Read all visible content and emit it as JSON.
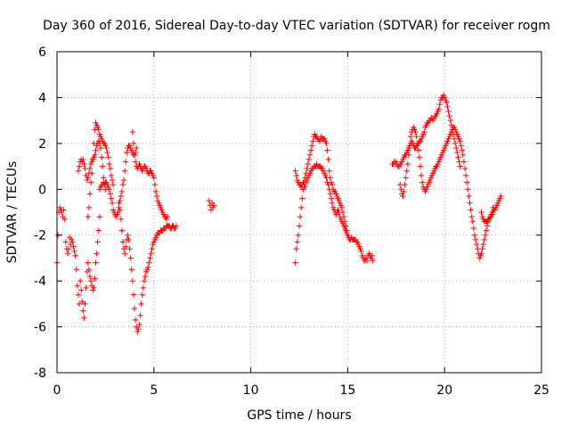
{
  "chart_data": {
    "type": "scatter",
    "title": "Day 360 of 2016, Sidereal Day-to-day VTEC variation (SDTVAR) for receiver rogm",
    "xlabel": "GPS time / hours",
    "ylabel": "SDTVAR / TECUs",
    "xlim": [
      0,
      25
    ],
    "ylim": [
      -8,
      6
    ],
    "xticks": [
      0,
      5,
      10,
      15,
      20,
      25
    ],
    "yticks": [
      -8,
      -6,
      -4,
      -2,
      0,
      2,
      4,
      6
    ],
    "grid": true,
    "marker": "+",
    "color": "#ff0000",
    "series": [
      {
        "name": "segment-1",
        "x": [
          0.0,
          0.05,
          0.1,
          0.15,
          0.2,
          0.25,
          0.3,
          0.35,
          0.4,
          0.45,
          0.5,
          0.55,
          0.6,
          0.65,
          0.7,
          0.75,
          0.8,
          0.85,
          0.9,
          0.95,
          1.0,
          1.05,
          1.1,
          1.15
        ],
        "y": [
          -3.2,
          -2.0,
          -1.0,
          -0.8,
          -0.9,
          -1.0,
          -1.2,
          -0.9,
          -1.3,
          -2.3,
          -2.6,
          -2.8,
          -2.6,
          -2.1,
          -2.4,
          -2.2,
          -2.3,
          -2.5,
          -2.7,
          -2.9,
          -3.5,
          -4.2,
          -4.6,
          -5.0
        ]
      },
      {
        "name": "segment-2",
        "x": [
          1.1,
          1.15,
          1.2,
          1.25,
          1.3,
          1.35,
          1.4,
          1.45,
          1.5,
          1.55,
          1.6,
          1.65,
          1.7,
          1.75,
          1.8,
          1.85,
          1.9,
          1.95,
          2.0,
          2.05,
          2.1,
          2.15,
          2.2,
          2.25,
          2.3,
          2.35,
          2.4,
          2.45,
          2.5
        ],
        "y": [
          0.8,
          1.0,
          1.2,
          1.3,
          1.2,
          1.3,
          1.1,
          0.9,
          0.6,
          0.4,
          0.5,
          0.7,
          0.9,
          1.1,
          1.2,
          1.3,
          1.4,
          1.5,
          1.7,
          1.9,
          2.0,
          2.1,
          2.0,
          1.8,
          1.4,
          1.0,
          0.5,
          0.2,
          0.0
        ]
      },
      {
        "name": "segment-3",
        "x": [
          1.2,
          1.25,
          1.3,
          1.35,
          1.4,
          1.45,
          1.5,
          1.55,
          1.6,
          1.65,
          1.7,
          1.75,
          1.8,
          1.85,
          1.9,
          1.95,
          2.0,
          2.05,
          2.1,
          2.15,
          2.2
        ],
        "y": [
          -4.0,
          -4.4,
          -4.9,
          -5.3,
          -5.6,
          -5.0,
          -4.3,
          -3.6,
          -3.2,
          -3.5,
          -3.8,
          -4.0,
          -4.2,
          -4.4,
          -4.3,
          -3.9,
          -3.2,
          -2.8,
          -2.3,
          -1.8,
          -1.2
        ]
      },
      {
        "name": "segment-4",
        "x": [
          1.6,
          1.65,
          1.7,
          1.75,
          1.8,
          1.85,
          1.9,
          1.95,
          2.0,
          2.05,
          2.1,
          2.15,
          2.2,
          2.25,
          2.3,
          2.35,
          2.4,
          2.45,
          2.5,
          2.55,
          2.6,
          2.65,
          2.7,
          2.75,
          2.8,
          2.85,
          2.9
        ],
        "y": [
          -1.2,
          -0.8,
          -0.2,
          0.3,
          0.7,
          1.3,
          2.0,
          2.6,
          2.9,
          2.8,
          2.7,
          2.6,
          2.4,
          2.3,
          2.2,
          2.1,
          2.0,
          2.0,
          1.9,
          1.8,
          1.6,
          1.4,
          1.1,
          0.9,
          0.6,
          0.4,
          0.2
        ]
      },
      {
        "name": "segment-5",
        "x": [
          2.2,
          2.25,
          2.3,
          2.35,
          2.4,
          2.45,
          2.5,
          2.55,
          2.6,
          2.65,
          2.7,
          2.75,
          2.8,
          2.85,
          2.9,
          2.95,
          3.0,
          3.05,
          3.1,
          3.15,
          3.2,
          3.25,
          3.3,
          3.35,
          3.4,
          3.45,
          3.5,
          3.55,
          3.6,
          3.65,
          3.7,
          3.75,
          3.8,
          3.85,
          3.9,
          3.95,
          4.0,
          4.05,
          4.1
        ],
        "y": [
          0.0,
          0.1,
          0.2,
          0.2,
          0.3,
          0.2,
          0.3,
          0.3,
          0.2,
          0.1,
          0.0,
          -0.2,
          -0.4,
          -0.6,
          -0.9,
          -1.0,
          -1.1,
          -1.2,
          -1.1,
          -1.0,
          -0.8,
          -0.5,
          -0.3,
          -0.1,
          0.2,
          0.4,
          0.8,
          1.2,
          1.6,
          1.8,
          1.9,
          1.9,
          1.8,
          1.7,
          1.6,
          1.5,
          1.5,
          1.6,
          1.8
        ]
      },
      {
        "name": "segment-6",
        "x": [
          3.2,
          3.25,
          3.3,
          3.35,
          3.4,
          3.45,
          3.5,
          3.55,
          3.6,
          3.65,
          3.7,
          3.75,
          3.8,
          3.85,
          3.9,
          3.95,
          4.0,
          4.05,
          4.1,
          4.15,
          4.2,
          4.25,
          4.3,
          4.35,
          4.4,
          4.45,
          4.5,
          4.55,
          4.6,
          4.65,
          4.7,
          4.75,
          4.8,
          4.85,
          4.9,
          4.95,
          5.0,
          5.05,
          5.1,
          5.15,
          5.2,
          5.25,
          5.3,
          5.35,
          5.4,
          5.45,
          5.5,
          5.55,
          5.6,
          5.65,
          5.7,
          5.75,
          5.8,
          5.85,
          5.9,
          5.95,
          6.0,
          6.05,
          6.1,
          6.15
        ],
        "y": [
          -0.6,
          -0.9,
          -1.3,
          -1.8,
          -2.3,
          -2.6,
          -2.8,
          -2.5,
          -2.2,
          -2.0,
          -2.2,
          -2.6,
          -3.0,
          -3.5,
          -4.0,
          -4.6,
          -5.2,
          -5.7,
          -6.0,
          -6.2,
          -6.1,
          -5.9,
          -5.5,
          -5.0,
          -4.6,
          -4.3,
          -4.0,
          -3.8,
          -3.6,
          -3.5,
          -3.4,
          -3.2,
          -3.0,
          -2.8,
          -2.6,
          -2.4,
          -2.3,
          -2.2,
          -2.1,
          -2.0,
          -1.9,
          -1.9,
          -1.9,
          -1.8,
          -1.8,
          -1.8,
          -1.7,
          -1.7,
          -1.7,
          -1.6,
          -1.6,
          -1.6,
          -1.6,
          -1.7,
          -1.7,
          -1.6,
          -1.6,
          -1.7,
          -1.7,
          -1.6
        ]
      },
      {
        "name": "segment-7",
        "x": [
          3.9,
          3.95,
          4.0,
          4.05,
          4.1,
          4.15,
          4.2,
          4.25,
          4.3,
          4.35,
          4.4,
          4.45,
          4.5,
          4.55,
          4.6,
          4.65,
          4.7,
          4.75,
          4.8,
          4.85,
          4.9,
          4.95,
          5.0,
          5.05,
          5.1,
          5.15,
          5.2,
          5.25,
          5.3,
          5.35,
          5.4,
          5.45,
          5.5,
          5.55,
          5.6,
          5.65,
          5.7
        ],
        "y": [
          2.5,
          2.0,
          1.5,
          1.2,
          1.0,
          0.9,
          1.0,
          1.1,
          1.0,
          0.9,
          0.8,
          0.9,
          1.0,
          1.0,
          0.9,
          0.8,
          0.7,
          0.7,
          0.8,
          0.8,
          0.7,
          0.6,
          0.5,
          0.2,
          -0.1,
          -0.3,
          -0.5,
          -0.6,
          -0.7,
          -0.8,
          -0.9,
          -1.0,
          -1.1,
          -1.2,
          -1.2,
          -1.3,
          -1.2
        ]
      },
      {
        "name": "segment-8",
        "x": [
          7.85,
          7.9,
          7.95,
          8.0,
          8.05,
          8.1
        ],
        "y": [
          -0.5,
          -0.7,
          -0.9,
          -0.6,
          -0.8,
          -0.7
        ]
      },
      {
        "name": "segment-9",
        "x": [
          12.3,
          12.35,
          12.4,
          12.45,
          12.5,
          12.55,
          12.6,
          12.65,
          12.7,
          12.75,
          12.8,
          12.85,
          12.9,
          12.95,
          13.0,
          13.05,
          13.1,
          13.15,
          13.2,
          13.25,
          13.3,
          13.35,
          13.4,
          13.45,
          13.5,
          13.55,
          13.6,
          13.65,
          13.7,
          13.75,
          13.8,
          13.85,
          13.9,
          13.95,
          14.0,
          14.05,
          14.1,
          14.15,
          14.2,
          14.25,
          14.3,
          14.35,
          14.4,
          14.45,
          14.5,
          14.55,
          14.6,
          14.65,
          14.7,
          14.75,
          14.8,
          14.85,
          14.9,
          14.95,
          15.0,
          15.05,
          15.1,
          15.15,
          15.2,
          15.25,
          15.3,
          15.35,
          15.4,
          15.45,
          15.5,
          15.55,
          15.6,
          15.65,
          15.7,
          15.75,
          15.8,
          15.85,
          15.9,
          15.95,
          16.0,
          16.05,
          16.1,
          16.15,
          16.2,
          16.25,
          16.3
        ],
        "y": [
          -3.2,
          -2.6,
          -2.3,
          -2.0,
          -1.6,
          -1.2,
          -0.8,
          -0.4,
          0.0,
          0.3,
          0.5,
          0.7,
          0.9,
          1.1,
          1.3,
          1.5,
          1.7,
          1.9,
          2.1,
          2.3,
          2.4,
          2.3,
          2.3,
          2.2,
          2.2,
          2.1,
          2.2,
          2.3,
          2.2,
          2.2,
          2.2,
          2.1,
          2.0,
          1.7,
          1.3,
          0.8,
          0.5,
          0.3,
          0.2,
          0.0,
          -0.1,
          -0.1,
          -0.2,
          -0.3,
          -0.4,
          -0.5,
          -0.6,
          -0.7,
          -0.8,
          -1.0,
          -1.2,
          -1.4,
          -1.6,
          -1.8,
          -2.0,
          -2.1,
          -2.2,
          -2.2,
          -2.1,
          -2.2,
          -2.2,
          -2.2,
          -2.2,
          -2.3,
          -2.3,
          -2.4,
          -2.5,
          -2.6,
          -2.7,
          -2.9,
          -3.0,
          -3.1,
          -3.1,
          -3.0,
          -3.1,
          -2.9,
          -2.8,
          -2.9,
          -3.0,
          -2.9,
          -3.1
        ]
      },
      {
        "name": "segment-10",
        "x": [
          12.3,
          12.35,
          12.4,
          12.45,
          12.5,
          12.55,
          12.6,
          12.65,
          12.7,
          12.75,
          12.8,
          12.85,
          12.9,
          12.95,
          13.0,
          13.05,
          13.1,
          13.15,
          13.2,
          13.25,
          13.3,
          13.35,
          13.4,
          13.45,
          13.5,
          13.55,
          13.6,
          13.65,
          13.7,
          13.75,
          13.8,
          13.85,
          13.9,
          13.95,
          14.0,
          14.05,
          14.1,
          14.15,
          14.2,
          14.25,
          14.3,
          14.35,
          14.4,
          14.45,
          14.5,
          14.55,
          14.6,
          14.65,
          14.7,
          14.75,
          14.8,
          14.85,
          14.9,
          14.95,
          15.0
        ],
        "y": [
          0.8,
          0.6,
          0.4,
          0.3,
          0.2,
          0.2,
          0.1,
          0.2,
          0.3,
          0.2,
          0.1,
          0.3,
          0.4,
          0.5,
          0.6,
          0.7,
          0.8,
          0.9,
          0.9,
          1.0,
          1.0,
          1.0,
          1.1,
          1.0,
          1.0,
          1.0,
          1.0,
          0.9,
          0.9,
          0.8,
          0.7,
          0.6,
          0.5,
          0.3,
          0.2,
          0.0,
          -0.2,
          -0.4,
          -0.6,
          -0.8,
          -0.9,
          -1.0,
          -1.1,
          -1.0,
          -0.9,
          -1.0,
          -1.2,
          -1.3,
          -1.4,
          -1.5,
          -1.6,
          -1.7,
          -1.8,
          -1.9,
          -2.0
        ]
      },
      {
        "name": "segment-11",
        "x": [
          17.3,
          17.35,
          17.4,
          17.45,
          17.5,
          17.55,
          17.6,
          17.65,
          17.7,
          17.75,
          17.8,
          17.85,
          17.9,
          17.95,
          18.0,
          18.05,
          18.1,
          18.15,
          18.2,
          18.25,
          18.3,
          18.35,
          18.4,
          18.45,
          18.5,
          18.55,
          18.6,
          18.65,
          18.7,
          18.75,
          18.8,
          18.85,
          18.9,
          18.95,
          19.0,
          19.05,
          19.1,
          19.15,
          19.2,
          19.25,
          19.3,
          19.35,
          19.4,
          19.45,
          19.5,
          19.55,
          19.6,
          19.65,
          19.7,
          19.75,
          19.8,
          19.85,
          19.9,
          19.95,
          20.0,
          20.05,
          20.1,
          20.15,
          20.2,
          20.25,
          20.3,
          20.35,
          20.4,
          20.45,
          20.5,
          20.55,
          20.6,
          20.65,
          20.7,
          20.75,
          20.8
        ],
        "y": [
          1.1,
          1.1,
          1.2,
          1.1,
          1.2,
          1.1,
          1.0,
          1.0,
          1.1,
          1.1,
          1.2,
          1.3,
          1.4,
          1.5,
          1.5,
          1.6,
          1.7,
          1.8,
          1.9,
          2.0,
          2.1,
          2.0,
          1.9,
          1.8,
          1.8,
          1.9,
          1.9,
          2.0,
          2.1,
          2.1,
          2.2,
          2.3,
          2.4,
          2.5,
          2.7,
          2.8,
          2.9,
          2.9,
          3.0,
          3.0,
          3.1,
          3.1,
          3.0,
          3.1,
          3.2,
          3.2,
          3.3,
          3.4,
          3.5,
          3.7,
          3.9,
          4.0,
          4.0,
          4.1,
          4.0,
          3.9,
          3.8,
          3.6,
          3.4,
          3.2,
          3.0,
          2.8,
          2.6,
          2.4,
          2.2,
          2.0,
          1.8,
          1.6,
          1.4,
          1.2,
          1.0
        ]
      },
      {
        "name": "segment-12",
        "x": [
          17.7,
          17.75,
          17.8,
          17.85,
          17.9,
          17.95,
          18.0,
          18.05,
          18.1,
          18.15,
          18.2,
          18.25,
          18.3,
          18.35,
          18.4,
          18.45,
          18.5,
          18.55,
          18.6,
          18.65,
          18.7,
          18.75,
          18.8,
          18.85,
          18.9,
          18.95,
          19.0,
          19.05,
          19.1,
          19.15,
          19.2,
          19.25,
          19.3,
          19.35,
          19.4,
          19.45,
          19.5,
          19.55,
          19.6,
          19.65,
          19.7,
          19.75,
          19.8,
          19.85,
          19.9,
          19.95,
          20.0,
          20.05,
          20.1,
          20.15,
          20.2,
          20.25,
          20.3,
          20.35,
          20.4,
          20.45,
          20.5,
          20.55,
          20.6,
          20.65,
          20.7,
          20.75,
          20.8,
          20.85,
          20.9,
          20.95,
          21.0,
          21.05,
          21.1,
          21.15,
          21.2,
          21.25,
          21.3,
          21.35,
          21.4,
          21.45,
          21.5,
          21.55,
          21.6,
          21.65,
          21.7,
          21.75,
          21.8,
          21.85,
          21.9,
          21.95,
          22.0,
          22.05,
          22.1,
          22.15,
          22.2,
          22.25,
          22.3,
          22.35,
          22.4,
          22.45,
          22.5
        ],
        "y": [
          0.2,
          0.0,
          -0.2,
          -0.3,
          -0.1,
          0.2,
          0.5,
          0.8,
          1.1,
          1.5,
          1.9,
          2.3,
          2.5,
          2.6,
          2.7,
          2.6,
          2.5,
          2.3,
          2.0,
          1.7,
          1.4,
          1.0,
          0.6,
          0.3,
          0.1,
          0.0,
          -0.1,
          0.0,
          0.1,
          0.2,
          0.3,
          0.4,
          0.5,
          0.6,
          0.7,
          0.8,
          0.9,
          1.0,
          1.0,
          1.1,
          1.2,
          1.3,
          1.4,
          1.5,
          1.6,
          1.7,
          1.8,
          1.9,
          2.0,
          2.1,
          2.2,
          2.3,
          2.4,
          2.5,
          2.6,
          2.7,
          2.7,
          2.6,
          2.5,
          2.4,
          2.3,
          2.2,
          2.1,
          1.9,
          1.7,
          1.5,
          1.2,
          0.9,
          0.6,
          0.3,
          0.0,
          -0.3,
          -0.6,
          -0.9,
          -1.2,
          -1.4,
          -1.7,
          -2.0,
          -2.2,
          -2.4,
          -2.6,
          -2.8,
          -3.0,
          -2.9,
          -2.8,
          -2.6,
          -2.4,
          -2.2,
          -2.0,
          -1.8,
          -1.6,
          -1.4,
          -1.3,
          -1.2,
          -1.1,
          -1.0,
          -0.8
        ]
      },
      {
        "name": "segment-13",
        "x": [
          21.9,
          21.95,
          22.0,
          22.05,
          22.1,
          22.15,
          22.2,
          22.25,
          22.3,
          22.35,
          22.4,
          22.45,
          22.5,
          22.55,
          22.6,
          22.65,
          22.7,
          22.75,
          22.8,
          22.85,
          22.9
        ],
        "y": [
          -1.0,
          -1.2,
          -1.3,
          -1.4,
          -1.4,
          -1.4,
          -1.4,
          -1.3,
          -1.3,
          -1.2,
          -1.2,
          -1.1,
          -1.0,
          -0.9,
          -0.9,
          -0.8,
          -0.7,
          -0.6,
          -0.5,
          -0.4,
          -0.3
        ]
      }
    ]
  }
}
